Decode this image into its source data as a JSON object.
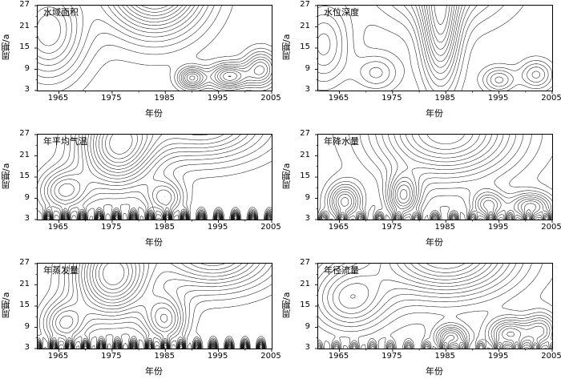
{
  "chart_data": {
    "type": "heatmap",
    "subtype": "wavelet-contour",
    "layout": {
      "rows": 3,
      "cols": 2,
      "grid": true
    },
    "xlabel": "年份",
    "ylabel": "周期/a",
    "x_range": [
      1961,
      2005
    ],
    "y_range": [
      3,
      27
    ],
    "xticks": [
      1965,
      1975,
      1985,
      1995,
      2005
    ],
    "yticks": [
      3,
      9,
      15,
      21,
      27
    ],
    "xticks_display": [
      "1965",
      "1975",
      "1985",
      "1995",
      "2005"
    ],
    "yticks_display": [
      "27",
      "21",
      "15",
      "9",
      "3"
    ],
    "line_color": "#1a1a1a",
    "panels": [
      {
        "title": "水域面积",
        "nlevels": 13,
        "bumps": [
          [
            1983,
            34,
            9,
            14,
            1.0
          ],
          [
            1963,
            20,
            7,
            14,
            0.55
          ],
          [
            1990,
            6.5,
            2.5,
            3,
            0.5
          ],
          [
            1997,
            7,
            3.5,
            3.5,
            0.55
          ],
          [
            2003,
            9,
            3,
            5,
            0.45
          ]
        ],
        "ripples": []
      },
      {
        "title": "水位深度",
        "nlevels": 13,
        "bumps": [
          [
            1984,
            20,
            3.5,
            16,
            1.0
          ],
          [
            1984,
            34,
            12,
            12,
            0.7
          ],
          [
            1962,
            16,
            5,
            12,
            0.6
          ],
          [
            1972,
            8,
            4,
            5,
            0.4
          ],
          [
            1995,
            6,
            3,
            3.5,
            0.5
          ],
          [
            2002,
            7.5,
            3,
            4,
            0.5
          ]
        ],
        "ripples": []
      },
      {
        "title": "年平均气温",
        "nlevels": 15,
        "bumps": [
          [
            1976,
            24,
            7,
            12,
            1.0
          ],
          [
            1992,
            30,
            12,
            10,
            0.75
          ],
          [
            1966,
            11,
            4.5,
            6,
            0.55
          ],
          [
            1985,
            9,
            3.5,
            5,
            0.5
          ]
        ],
        "ripples": [
          {
            "amp": 0.9,
            "y0": 3,
            "sy": 2.2,
            "wl": 3.2,
            "phase": 1963
          }
        ]
      },
      {
        "title": "年降水量",
        "nlevels": 13,
        "bumps": [
          [
            1985,
            28,
            13,
            13,
            0.9
          ],
          [
            1966,
            8,
            3,
            5,
            0.6
          ],
          [
            1977,
            9.5,
            3,
            6,
            0.65
          ],
          [
            1993,
            7,
            3,
            4,
            0.5
          ],
          [
            2001,
            6.5,
            4,
            4,
            0.6
          ]
        ],
        "ripples": [
          {
            "amp": 0.6,
            "y0": 3,
            "sy": 1.8,
            "wl": 3.5,
            "phase": 1962
          }
        ]
      },
      {
        "title": "年蒸发量",
        "nlevels": 15,
        "bumps": [
          [
            1975,
            24,
            7,
            12,
            1.0
          ],
          [
            1994,
            30,
            11,
            10,
            0.8
          ],
          [
            1966,
            10,
            4,
            6,
            0.5
          ],
          [
            1985,
            11,
            4,
            7,
            0.6
          ]
        ],
        "ripples": [
          {
            "amp": 0.85,
            "y0": 3,
            "sy": 2.2,
            "wl": 3.0,
            "phase": 1964
          }
        ]
      },
      {
        "title": "年径流量",
        "nlevels": 13,
        "bumps": [
          [
            1985,
            30,
            13,
            12,
            0.9
          ],
          [
            1967,
            17,
            7,
            9,
            0.5
          ],
          [
            1986,
            6,
            3,
            3.5,
            0.55
          ],
          [
            1997,
            7,
            4,
            4.5,
            0.6
          ],
          [
            2003,
            8,
            3,
            5,
            0.45
          ]
        ],
        "ripples": [
          {
            "amp": 0.45,
            "y0": 3,
            "sy": 1.8,
            "wl": 3.4,
            "phase": 1961
          }
        ]
      }
    ]
  }
}
